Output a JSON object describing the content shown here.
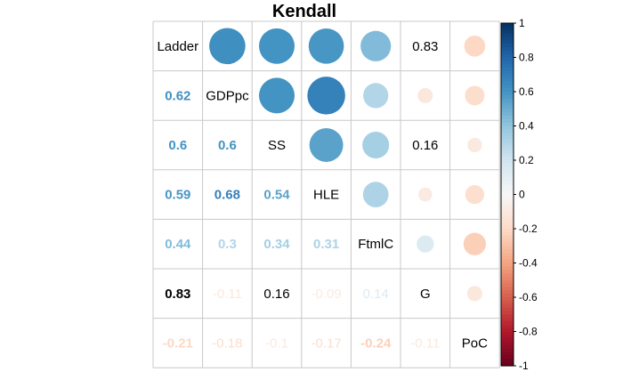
{
  "chart_data": {
    "type": "heatmap",
    "title": "Kendall",
    "variables": [
      "Ladder",
      "GDPpc",
      "SS",
      "HLE",
      "FtmlC",
      "G",
      "PoC"
    ],
    "matrix": [
      [
        1,
        0.62,
        0.6,
        0.59,
        0.44,
        0.83,
        -0.21
      ],
      [
        0.62,
        1,
        0.6,
        0.68,
        0.3,
        -0.11,
        -0.18
      ],
      [
        0.6,
        0.6,
        1,
        0.54,
        0.34,
        0.16,
        -0.1
      ],
      [
        0.59,
        0.68,
        0.54,
        1,
        0.31,
        -0.09,
        -0.17
      ],
      [
        0.44,
        0.3,
        0.34,
        0.31,
        1,
        0.14,
        -0.24
      ],
      [
        0.83,
        -0.11,
        0.16,
        -0.09,
        0.14,
        1,
        -0.11
      ],
      [
        -0.21,
        -0.18,
        -0.1,
        -0.17,
        -0.24,
        -0.11,
        1
      ]
    ],
    "lower_labels": [
      [],
      [
        "0.62"
      ],
      [
        "0.6",
        "0.6"
      ],
      [
        "0.59",
        "0.68",
        "0.54"
      ],
      [
        "0.44",
        "0.3",
        "0.34",
        "0.31"
      ],
      [
        "0.83",
        "-0.11",
        "0.16",
        "-0.09",
        "0.14"
      ],
      [
        "-0.21",
        "-0.18",
        "-0.1",
        "-0.17",
        "-0.24",
        "-0.11"
      ]
    ],
    "upper_text_labels": [
      {
        "row": 0,
        "col": 5,
        "text": "0.83"
      },
      {
        "row": 2,
        "col": 5,
        "text": "0.16"
      }
    ],
    "upper_display": "circle",
    "lower_display": "number",
    "diagonal_display": "variable-name",
    "colorbar": {
      "min": -1,
      "max": 1,
      "ticks": [
        "1",
        "0.8",
        "0.6",
        "0.4",
        "0.2",
        "0",
        "-0.2",
        "-0.4",
        "-0.6",
        "-0.8",
        "-1"
      ],
      "placement": "right"
    },
    "colors": {
      "negative_end": "#67001F",
      "neutral": "#F7F7F7",
      "positive_end": "#053061",
      "grid": "#c8c8c8"
    }
  }
}
